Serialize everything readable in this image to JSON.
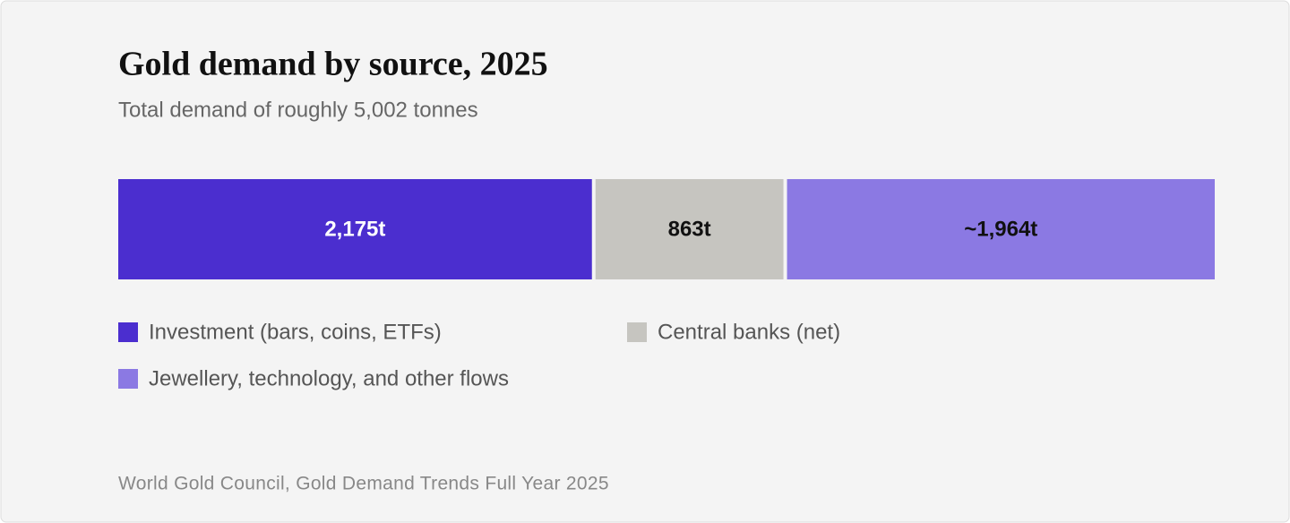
{
  "chart_data": {
    "type": "stacked-bar",
    "title": "Gold demand by source, 2025",
    "subtitle": "Total demand of roughly 5,002 tonnes",
    "series": [
      {
        "name": "Investment (bars, coins, ETFs)",
        "color": "#4b2ecf",
        "values": [
          2175
        ],
        "value_labels": [
          "2,175t"
        ]
      },
      {
        "name": "Central banks (net)",
        "color": "#c6c5c0",
        "values": [
          863
        ],
        "value_labels": [
          "863t"
        ]
      },
      {
        "name": "Jewellery, technology, and other flows",
        "color": "#8b79e3",
        "values": [
          1964
        ],
        "value_labels": [
          "~1,964t"
        ]
      }
    ],
    "source": "World Gold Council, Gold Demand Trends Full Year 2025"
  }
}
